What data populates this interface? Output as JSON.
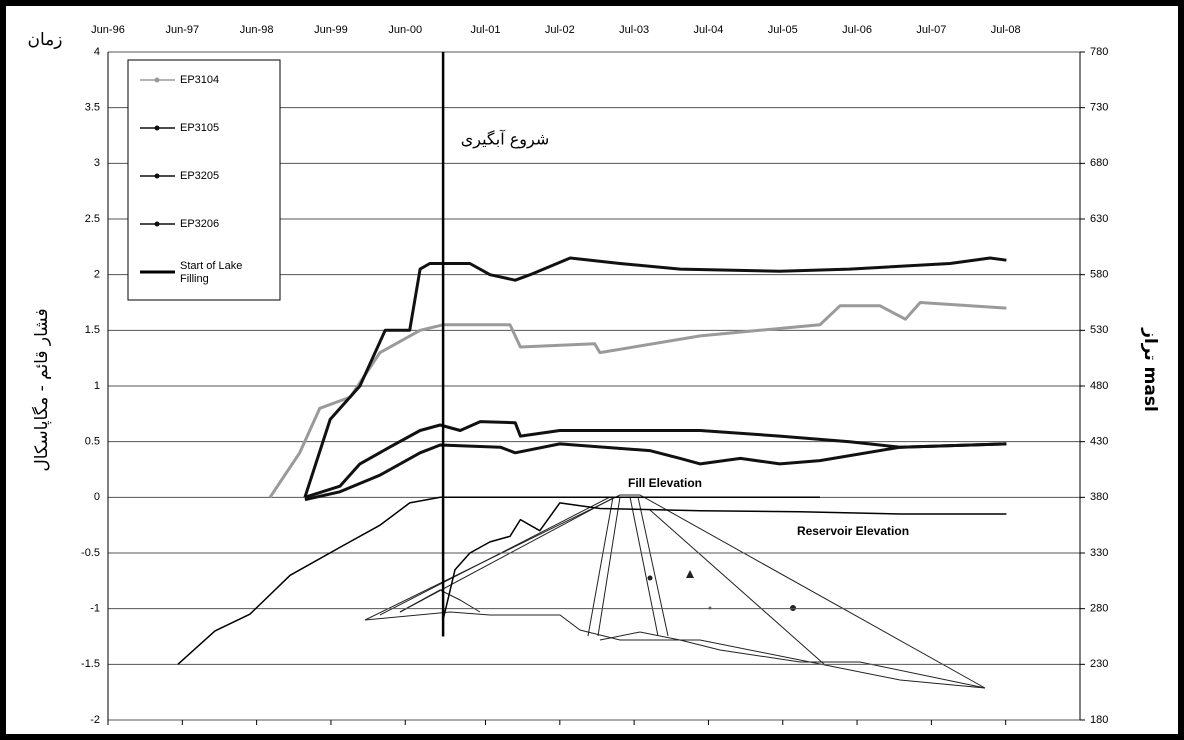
{
  "chart_data": {
    "type": "line",
    "x_label": "زمان",
    "y_label": "فشار قائم - مگاپاسکال",
    "y2_label": "تراز masl",
    "annotations": [
      "شروع آبگیری",
      "Fill Elevation",
      "Reservoir Elevation"
    ],
    "xlim": [
      1996.42,
      2009.5
    ],
    "xticks": [
      {
        "value": 1996.42,
        "label": "Jun-96"
      },
      {
        "value": 1997.42,
        "label": "Jun-97"
      },
      {
        "value": 1998.42,
        "label": "Jun-98"
      },
      {
        "value": 1999.42,
        "label": "Jun-99"
      },
      {
        "value": 2000.42,
        "label": "Jun-00"
      },
      {
        "value": 2001.5,
        "label": "Jul-01"
      },
      {
        "value": 2002.5,
        "label": "Jul-02"
      },
      {
        "value": 2003.5,
        "label": "Jul-03"
      },
      {
        "value": 2004.5,
        "label": "Jul-04"
      },
      {
        "value": 2005.5,
        "label": "Jul-05"
      },
      {
        "value": 2006.5,
        "label": "Jul-06"
      },
      {
        "value": 2007.5,
        "label": "Jul-07"
      },
      {
        "value": 2008.5,
        "label": "Jul-08"
      }
    ],
    "ylim": [
      -2,
      4
    ],
    "yticks": [
      -2,
      -1.5,
      -1,
      -0.5,
      0,
      0.5,
      1,
      1.5,
      2,
      2.5,
      3,
      3.5,
      4
    ],
    "y2lim": [
      180,
      780
    ],
    "y2ticks": [
      180,
      230,
      280,
      330,
      380,
      430,
      480,
      530,
      580,
      630,
      680,
      730,
      780
    ],
    "grid": true,
    "legend": "top-left",
    "series": [
      {
        "name": "EP3104",
        "color": "#9a9a9a",
        "x": [
          1998.6,
          1999.0,
          1999.27,
          1999.68,
          2000.08,
          2000.62,
          2000.93,
          2001.83,
          2001.97,
          2002.97,
          2003.04,
          2004.39,
          2005.19,
          2006.0,
          2006.27,
          2006.81,
          2007.15,
          2007.35,
          2008.51
        ],
        "values": [
          0,
          0.4,
          0.8,
          0.9,
          1.3,
          1.5,
          1.55,
          1.55,
          1.35,
          1.38,
          1.3,
          1.45,
          1.5,
          1.55,
          1.72,
          1.72,
          1.6,
          1.75,
          1.7
        ]
      },
      {
        "name": "EP3105",
        "color": "#111111",
        "x": [
          1999.07,
          1999.41,
          1999.81,
          2000.15,
          2000.48,
          2000.62,
          2000.75,
          2001.29,
          2001.56,
          2001.9,
          2002.1,
          2002.64,
          2003.31,
          2004.12,
          2005.46,
          2006.4,
          2007.75,
          2008.29,
          2008.51
        ],
        "values": [
          0,
          0.7,
          1.0,
          1.5,
          1.5,
          2.05,
          2.1,
          2.1,
          2.0,
          1.95,
          2.0,
          2.15,
          2.1,
          2.05,
          2.03,
          2.05,
          2.1,
          2.15,
          2.13
        ]
      },
      {
        "name": "EP3205",
        "color": "#111111",
        "x": [
          1999.07,
          1999.54,
          1999.81,
          2000.21,
          2000.62,
          2000.89,
          2001.16,
          2001.43,
          2001.9,
          2001.97,
          2002.5,
          2004.39,
          2005.46,
          2006.4,
          2007.08,
          2008.51
        ],
        "values": [
          0,
          0.1,
          0.3,
          0.45,
          0.6,
          0.65,
          0.6,
          0.68,
          0.67,
          0.55,
          0.6,
          0.6,
          0.55,
          0.5,
          0.45,
          0.48
        ]
      },
      {
        "name": "EP3206",
        "color": "#111111",
        "x": [
          1999.07,
          1999.54,
          2000.08,
          2000.62,
          2000.89,
          2001.7,
          2001.9,
          2002.5,
          2003.71,
          2004.12,
          2004.39,
          2004.93,
          2005.46,
          2006.0,
          2007.08,
          2008.51
        ],
        "values": [
          -0.02,
          0.05,
          0.2,
          0.4,
          0.47,
          0.45,
          0.4,
          0.48,
          0.42,
          0.35,
          0.3,
          0.35,
          0.3,
          0.33,
          0.45,
          0.48
        ]
      },
      {
        "name": "Start of Lake Filling",
        "color": "#000000",
        "x": [
          2000.93,
          2000.93
        ],
        "values": [
          -1.25,
          4
        ]
      },
      {
        "name": "Fill Elevation",
        "color": "#000000",
        "axis": "y2",
        "x": [
          1997.36,
          1997.86,
          1998.33,
          1998.87,
          1999.54,
          2000.08,
          2000.48,
          2000.89,
          2006.0
        ],
        "values": [
          230,
          260,
          275,
          310,
          335,
          355,
          375,
          380,
          380
        ]
      },
      {
        "name": "Reservoir Elevation",
        "color": "#000000",
        "axis": "y2",
        "x": [
          2000.93,
          2001.09,
          2001.29,
          2001.56,
          2001.83,
          2001.97,
          2002.23,
          2002.5,
          2003.04,
          2004.39,
          2005.73,
          2007.08,
          2008.51
        ],
        "values": [
          270,
          315,
          330,
          340,
          345,
          360,
          350,
          375,
          370,
          368,
          367,
          365,
          365
        ]
      }
    ]
  }
}
